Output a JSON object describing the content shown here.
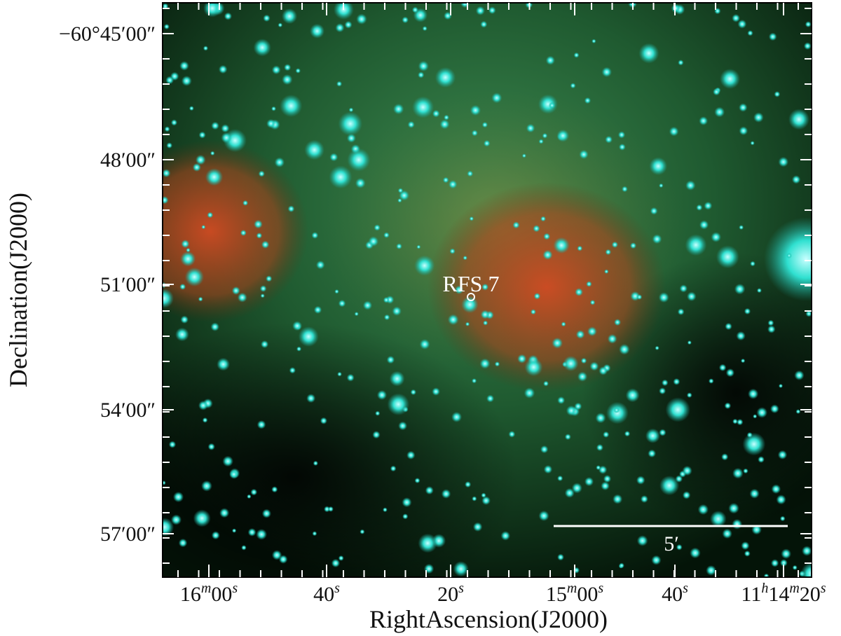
{
  "figure": {
    "y_axis": {
      "label": "Declination(J2000)",
      "ticks": [
        "−60°45′00″",
        "48′00″",
        "51′00″",
        "54′00″",
        "57′00″"
      ]
    },
    "x_axis": {
      "label": "RightAscension(J2000)",
      "ticks": [
        "16m00s",
        "40s",
        "20s",
        "15m00s",
        "40s",
        "11h14m20s"
      ]
    },
    "annotations": {
      "source": "RFS 7",
      "scale_bar": "5′"
    }
  }
}
